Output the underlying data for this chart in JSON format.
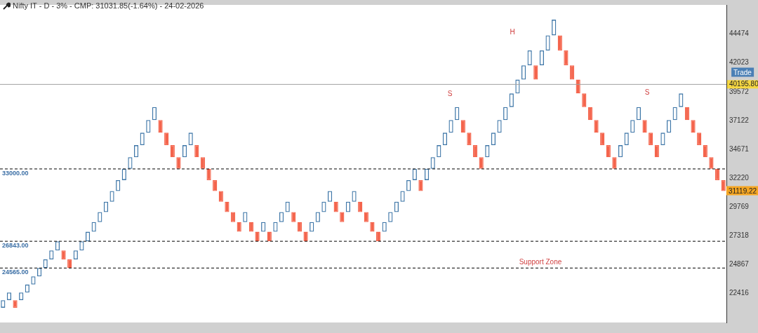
{
  "chart_data": {
    "type": "bar",
    "title": "Nifty IT - D - 3% - CMP: 31031.85(-1.64%) - 24-02-2026",
    "categories": [
      null,
      null,
      null,
      null,
      null,
      null,
      null,
      null,
      null,
      null,
      null,
      null,
      null,
      null,
      null,
      null,
      null,
      null,
      null,
      null,
      null,
      null,
      null,
      null,
      null,
      null,
      null,
      null,
      null,
      null,
      null,
      null,
      null,
      null,
      null,
      null,
      null,
      null,
      null,
      null,
      null,
      null,
      null,
      null,
      null,
      null,
      null,
      null,
      null,
      null,
      null,
      null,
      null,
      null,
      null,
      null,
      null,
      null,
      null,
      null,
      null,
      null,
      null,
      null,
      null,
      null,
      null,
      null,
      null,
      null,
      null,
      null,
      null,
      null,
      null,
      null,
      null,
      null,
      null,
      null,
      null,
      null,
      null,
      null,
      null,
      null,
      null,
      null,
      null,
      null,
      null,
      null,
      null,
      null,
      null,
      null,
      null,
      null,
      null,
      null,
      null,
      null,
      null,
      null,
      null,
      null,
      null,
      null,
      null,
      null,
      null,
      null,
      null,
      null,
      null,
      null,
      null,
      null,
      null,
      null
    ],
    "base": [
      21190,
      21830,
      21830,
      21830,
      22480,
      23160,
      23850,
      24570,
      25300,
      26060,
      26060,
      25300,
      25300,
      26060,
      26840,
      27650,
      28480,
      29330,
      30210,
      31120,
      32050,
      33010,
      34000,
      35020,
      36080,
      37160,
      37160,
      36080,
      35020,
      34000,
      34000,
      35020,
      35020,
      34000,
      33010,
      32050,
      31120,
      30210,
      29330,
      28480,
      28480,
      28480,
      27650,
      27650,
      27650,
      27650,
      28480,
      29330,
      29330,
      28480,
      27650,
      27650,
      28480,
      29330,
      30210,
      30210,
      29330,
      29330,
      30210,
      30210,
      29330,
      28480,
      27650,
      27650,
      28480,
      29330,
      30210,
      31120,
      32050,
      32050,
      32050,
      33010,
      34000,
      35020,
      36080,
      37160,
      37160,
      36080,
      35020,
      34000,
      34000,
      35020,
      36080,
      37160,
      38270,
      39420,
      40600,
      41820,
      41820,
      41820,
      43080,
      44370,
      44370,
      43080,
      41820,
      40600,
      39420,
      38270,
      37160,
      36080,
      35020,
      34000,
      34000,
      35020,
      36080,
      37160,
      37160,
      36080,
      35020,
      35020,
      36080,
      37160,
      38270,
      38270,
      37160,
      36080,
      35020,
      34000,
      33010,
      32050
    ],
    "values": [
      640,
      650,
      -640,
      650,
      680,
      690,
      720,
      730,
      760,
      780,
      -760,
      -730,
      760,
      780,
      810,
      830,
      850,
      880,
      910,
      930,
      960,
      990,
      1020,
      1060,
      1080,
      1110,
      -1080,
      -1060,
      -1020,
      -990,
      1020,
      1060,
      -1020,
      -990,
      -960,
      -930,
      -910,
      -880,
      -850,
      -830,
      850,
      -830,
      -810,
      830,
      -810,
      830,
      850,
      880,
      -850,
      -830,
      -810,
      830,
      850,
      880,
      910,
      -880,
      -850,
      880,
      910,
      -880,
      -850,
      -830,
      -810,
      830,
      850,
      880,
      910,
      930,
      960,
      -930,
      960,
      990,
      1020,
      1060,
      1080,
      1110,
      -1080,
      -1060,
      -1020,
      -990,
      1020,
      1060,
      1080,
      1110,
      1150,
      1180,
      1220,
      1260,
      -1220,
      1260,
      1290,
      1330,
      -1290,
      -1260,
      -1220,
      -1180,
      -1150,
      -1110,
      -1080,
      -1060,
      -1020,
      -990,
      1020,
      1060,
      1080,
      1110,
      -1080,
      -1060,
      -1020,
      1060,
      1080,
      1110,
      1150,
      -1110,
      -1080,
      -1060,
      -1020,
      -990,
      -960,
      -930
    ],
    "colors": [
      "#3f77a8",
      "#3f77a8",
      "#f4644c",
      "#3f77a8",
      "#3f77a8",
      "#3f77a8",
      "#3f77a8",
      "#3f77a8",
      "#3f77a8",
      "#3f77a8",
      "#f4644c",
      "#f4644c",
      "#3f77a8",
      "#3f77a8",
      "#3f77a8",
      "#3f77a8",
      "#3f77a8",
      "#3f77a8",
      "#3f77a8",
      "#3f77a8",
      "#3f77a8",
      "#3f77a8",
      "#3f77a8",
      "#3f77a8",
      "#3f77a8",
      "#3f77a8",
      "#f4644c",
      "#f4644c",
      "#f4644c",
      "#f4644c",
      "#3f77a8",
      "#3f77a8",
      "#f4644c",
      "#f4644c",
      "#f4644c",
      "#f4644c",
      "#f4644c",
      "#f4644c",
      "#f4644c",
      "#f4644c",
      "#3f77a8",
      "#f4644c",
      "#f4644c",
      "#3f77a8",
      "#f4644c",
      "#3f77a8",
      "#3f77a8",
      "#3f77a8",
      "#f4644c",
      "#f4644c",
      "#f4644c",
      "#3f77a8",
      "#3f77a8",
      "#3f77a8",
      "#3f77a8",
      "#f4644c",
      "#f4644c",
      "#3f77a8",
      "#3f77a8",
      "#f4644c",
      "#f4644c",
      "#f4644c",
      "#f4644c",
      "#3f77a8",
      "#3f77a8",
      "#3f77a8",
      "#3f77a8",
      "#3f77a8",
      "#3f77a8",
      "#f4644c",
      "#3f77a8",
      "#3f77a8",
      "#3f77a8",
      "#3f77a8",
      "#3f77a8",
      "#3f77a8",
      "#f4644c",
      "#f4644c",
      "#f4644c",
      "#f4644c",
      "#3f77a8",
      "#3f77a8",
      "#3f77a8",
      "#3f77a8",
      "#3f77a8",
      "#3f77a8",
      "#3f77a8",
      "#3f77a8",
      "#f4644c",
      "#3f77a8",
      "#3f77a8",
      "#3f77a8",
      "#f4644c",
      "#f4644c",
      "#f4644c",
      "#f4644c",
      "#f4644c",
      "#f4644c",
      "#f4644c",
      "#f4644c",
      "#f4644c",
      "#f4644c",
      "#3f77a8",
      "#3f77a8",
      "#3f77a8",
      "#3f77a8",
      "#f4644c",
      "#f4644c",
      "#f4644c",
      "#3f77a8",
      "#3f77a8",
      "#3f77a8",
      "#3f77a8",
      "#f4644c",
      "#f4644c",
      "#f4644c",
      "#f4644c",
      "#f4644c",
      "#f4644c",
      "#f4644c"
    ],
    "ylim": [
      19930,
      46960
    ],
    "yticks": [
      22416,
      24867,
      27318,
      29769,
      32220,
      34671,
      37122,
      39572,
      42023,
      44474
    ],
    "ref_lines": [
      {
        "axis": "y",
        "value": 40195.8,
        "label": "40195.80",
        "color": "#a0a0a0",
        "line_style": "solid"
      },
      {
        "axis": "y",
        "value": 33000,
        "label": "33000.00",
        "color": "#000000",
        "line_style": "dashed"
      },
      {
        "axis": "y",
        "value": 26843,
        "label": "26843.00",
        "color": "#000000",
        "line_style": "dashed"
      },
      {
        "axis": "y",
        "value": 24565,
        "label": "24565.00",
        "color": "#000000",
        "line_style": "dashed"
      }
    ],
    "annotations": [
      "S",
      "H",
      "S",
      "Support Zone",
      "Trade",
      "31119.22"
    ]
  }
}
